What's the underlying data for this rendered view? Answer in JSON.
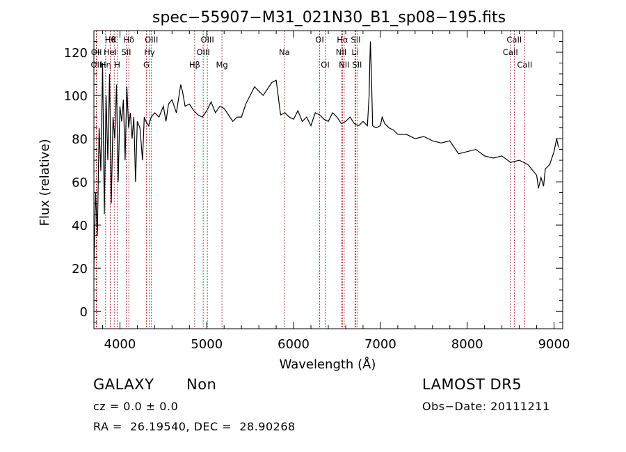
{
  "chart_data": {
    "type": "line",
    "title": "spec−55907−M31_021N30_B1_sp08−195.fits",
    "xlabel": "Wavelength (Å)",
    "ylabel": "Flux (relative)",
    "xlim": [
      3700,
      9100
    ],
    "ylim": [
      -8,
      130
    ],
    "xticks": [
      4000,
      5000,
      6000,
      7000,
      8000,
      9000
    ],
    "yticks": [
      0,
      20,
      40,
      60,
      80,
      100,
      120
    ],
    "grid": false,
    "legend": "none",
    "series": [
      {
        "x": [
          3700,
          3720,
          3740,
          3760,
          3780,
          3800,
          3820,
          3840,
          3860,
          3880,
          3900,
          3920,
          3940,
          3960,
          3980,
          4000,
          4020,
          4040,
          4060,
          4080,
          4100,
          4120,
          4140,
          4160,
          4180,
          4200,
          4230,
          4260,
          4280,
          4300,
          4330,
          4360,
          4400,
          4450,
          4500,
          4530,
          4560,
          4600,
          4650,
          4700,
          4720,
          4750,
          4800,
          4850,
          4900,
          4950,
          5000,
          5050,
          5100,
          5150,
          5200,
          5250,
          5300,
          5350,
          5400,
          5450,
          5500,
          5550,
          5600,
          5650,
          5700,
          5750,
          5800,
          5850,
          5900,
          5950,
          6000,
          6050,
          6100,
          6150,
          6200,
          6250,
          6300,
          6350,
          6400,
          6450,
          6500,
          6550,
          6600,
          6650,
          6700,
          6750,
          6800,
          6850,
          6870,
          6880,
          6885,
          6895,
          6910,
          6950,
          7000,
          7020,
          7030,
          7050,
          7100,
          7150,
          7200,
          7300,
          7400,
          7500,
          7600,
          7700,
          7800,
          7900,
          8000,
          8100,
          8200,
          8300,
          8400,
          8500,
          8600,
          8700,
          8800,
          8820,
          8850,
          8880,
          8900,
          8950,
          9000,
          9030,
          9050
        ],
        "y": [
          20,
          55,
          35,
          85,
          65,
          115,
          45,
          100,
          70,
          110,
          50,
          90,
          80,
          105,
          60,
          95,
          88,
          98,
          70,
          104,
          85,
          92,
          80,
          90,
          60,
          88,
          85,
          70,
          90,
          88,
          86,
          90,
          92,
          90,
          95,
          88,
          96,
          98,
          92,
          105,
          102,
          95,
          96,
          93,
          91,
          90,
          93,
          97,
          92,
          95,
          94,
          91,
          88,
          90,
          90,
          96,
          100,
          104,
          102,
          100,
          103,
          106,
          107,
          91,
          92,
          90,
          89,
          93,
          88,
          90,
          86,
          92,
          91,
          89,
          88,
          92,
          90,
          87,
          88,
          90,
          87,
          86,
          88,
          86,
          100,
          118,
          125,
          112,
          86,
          85,
          86,
          90,
          89,
          87,
          85,
          84,
          82,
          82,
          80,
          81,
          79,
          78,
          79,
          73,
          74,
          75,
          72,
          71,
          72,
          69,
          70,
          68,
          63,
          57,
          62,
          58,
          66,
          68,
          74,
          80,
          76
        ]
      }
    ],
    "line_marks": [
      {
        "label": "OII",
        "x": 3727,
        "row": 2
      },
      {
        "label": "OII",
        "x": 3729,
        "row": 1
      },
      {
        "label": "Hη",
        "x": 3835,
        "row": 2
      },
      {
        "label": "Hθ",
        "x": 3889,
        "row": 0
      },
      {
        "label": "HeI",
        "x": 3889,
        "row": 1
      },
      {
        "label": "K",
        "x": 3934,
        "row": 0
      },
      {
        "label": "H",
        "x": 3969,
        "row": 2
      },
      {
        "label": "Hδ",
        "x": 4102,
        "row": 0
      },
      {
        "label": "SII",
        "x": 4072,
        "row": 1
      },
      {
        "label": "G",
        "x": 4305,
        "row": 2
      },
      {
        "label": "OIII",
        "x": 4363,
        "row": 0
      },
      {
        "label": "Hγ",
        "x": 4341,
        "row": 1
      },
      {
        "label": "Hβ",
        "x": 4861,
        "row": 2
      },
      {
        "label": "OIII",
        "x": 4959,
        "row": 1
      },
      {
        "label": "OIII",
        "x": 5007,
        "row": 0
      },
      {
        "label": "Mg",
        "x": 5175,
        "row": 2
      },
      {
        "label": "Na",
        "x": 5894,
        "row": 1
      },
      {
        "label": "OI",
        "x": 6300,
        "row": 0
      },
      {
        "label": "OI",
        "x": 6364,
        "row": 2
      },
      {
        "label": "NII",
        "x": 6548,
        "row": 1
      },
      {
        "label": "Hα",
        "x": 6563,
        "row": 0
      },
      {
        "label": "NII",
        "x": 6583,
        "row": 2
      },
      {
        "label": "SII",
        "x": 6716,
        "row": 0
      },
      {
        "label": "Li",
        "x": 6707,
        "row": 1
      },
      {
        "label": "SII",
        "x": 6731,
        "row": 2
      },
      {
        "label": "CaII",
        "x": 8498,
        "row": 1
      },
      {
        "label": "CaII",
        "x": 8542,
        "row": 0
      },
      {
        "label": "CaII",
        "x": 8662,
        "row": 2
      }
    ]
  },
  "info": {
    "class_label": "GALAXY",
    "subclass_label": "Non",
    "survey_label": "LAMOST DR5",
    "cz_line": "cz = 0.0 ± 0.0",
    "obs_date_line": "Obs−Date: 20111211",
    "coords_line": "RA =  26.19540, DEC =  28.90268"
  },
  "colors": {
    "line": "#000000",
    "marker": "#aa1111",
    "background": "#ffffff"
  }
}
